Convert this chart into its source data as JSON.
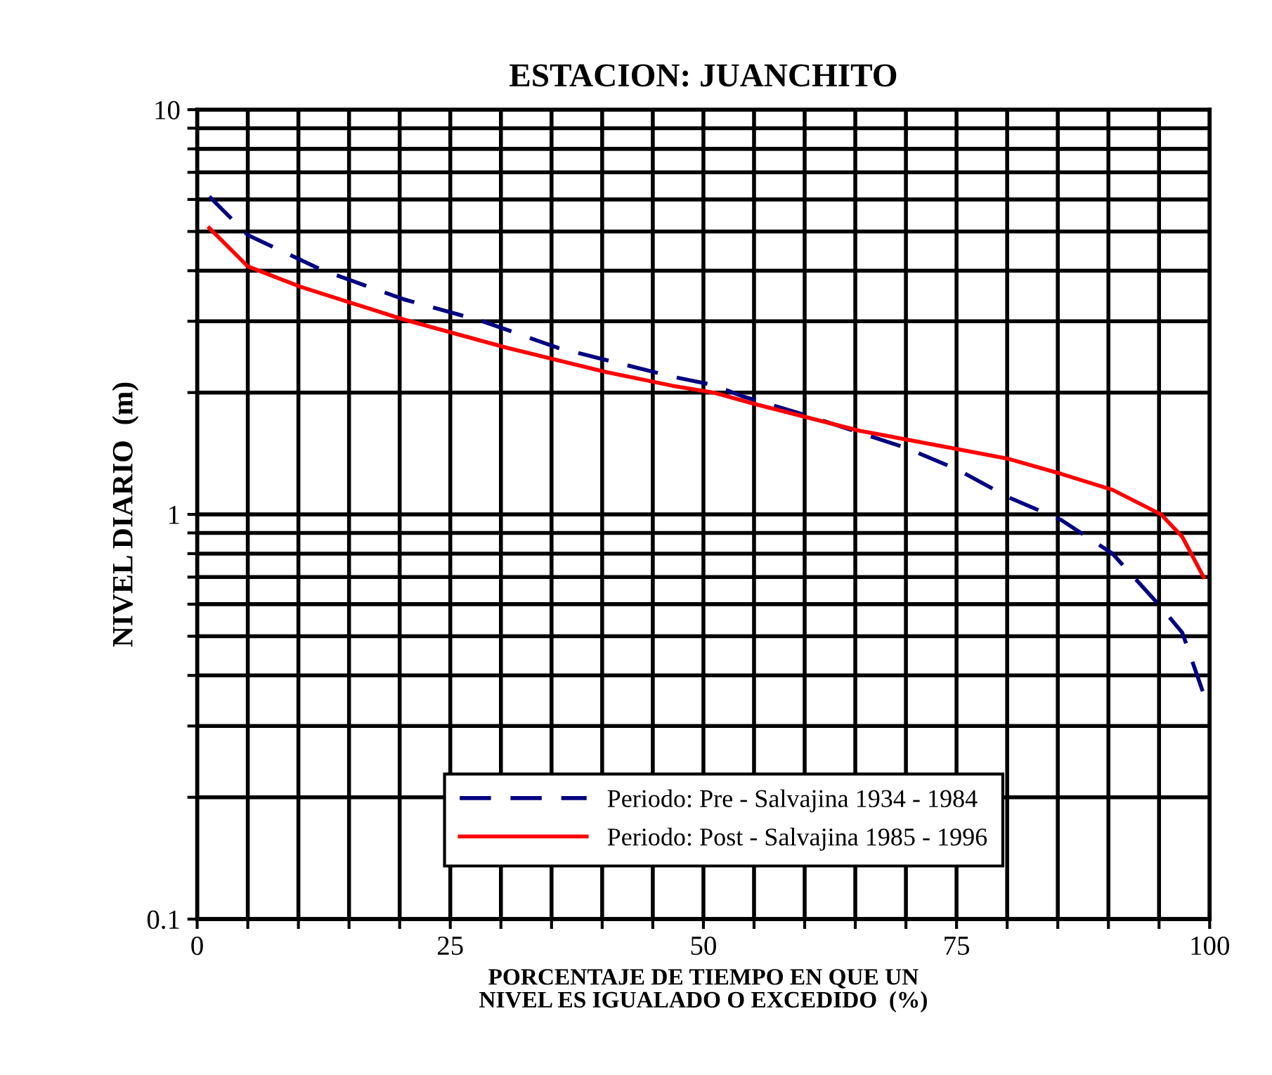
{
  "chart_data": {
    "type": "line",
    "title": "ESTACION: JUANCHITO",
    "xlabel": "PORCENTAJE DE TIEMPO EN QUE UN\nNIVEL ES IGUALADO O EXCEDIDO  (%)",
    "ylabel": "NIVEL DIARIO  (m)",
    "series": [
      {
        "name": "Periodo: Pre - Salvajina 1934 - 1984",
        "color": "#000080",
        "line_style": "dashed",
        "x": [
          1.2,
          5,
          12.5,
          20.4,
          28.2,
          35.6,
          46.9,
          50.9,
          53.8,
          60.7,
          70,
          75.1,
          80.2,
          85.3,
          90.4,
          95.2,
          97.3,
          99.4
        ],
        "values": [
          6.1,
          4.9,
          4.0,
          3.4,
          3.0,
          2.58,
          2.19,
          2.09,
          1.96,
          1.74,
          1.46,
          1.29,
          1.1,
          0.97,
          0.8,
          0.59,
          0.51,
          0.36
        ]
      },
      {
        "name": "Periodo: Post - Salvajina 1985 - 1996",
        "color": "#ff0000",
        "line_style": "solid",
        "x": [
          1.2,
          5,
          10.2,
          20.4,
          30.6,
          40.3,
          46.9,
          51,
          55.2,
          65.4,
          75.1,
          80.2,
          85.3,
          90.4,
          95.2,
          97.3,
          99.4
        ],
        "values": [
          5.1,
          4.1,
          3.65,
          3.03,
          2.58,
          2.25,
          2.08,
          2.0,
          1.87,
          1.61,
          1.45,
          1.37,
          1.26,
          1.15,
          1.0,
          0.88,
          0.7
        ]
      }
    ],
    "log": "y",
    "xlim": [
      0,
      100
    ],
    "ylim": [
      0.1,
      10
    ],
    "xticks": [
      0,
      {
        "value": 5,
        "label": null
      },
      {
        "value": 10,
        "label": null
      },
      {
        "value": 15,
        "label": null
      },
      {
        "value": 20,
        "label": null
      },
      25,
      {
        "value": 30,
        "label": null
      },
      {
        "value": 35,
        "label": null
      },
      {
        "value": 40,
        "label": null
      },
      {
        "value": 45,
        "label": null
      },
      50,
      {
        "value": 55,
        "label": null
      },
      {
        "value": 60,
        "label": null
      },
      {
        "value": 65,
        "label": null
      },
      {
        "value": 70,
        "label": null
      },
      75,
      {
        "value": 80,
        "label": null
      },
      {
        "value": 85,
        "label": null
      },
      {
        "value": 90,
        "label": null
      },
      {
        "value": 95,
        "label": null
      },
      100
    ],
    "yticks": [
      0.1,
      {
        "value": 0.2,
        "label": null
      },
      {
        "value": 0.3,
        "label": null
      },
      {
        "value": 0.4,
        "label": null
      },
      {
        "value": 0.5,
        "label": null
      },
      {
        "value": 0.6,
        "label": null
      },
      {
        "value": 0.7,
        "label": null
      },
      {
        "value": 0.8,
        "label": null
      },
      {
        "value": 0.9,
        "label": null
      },
      1,
      {
        "value": 2,
        "label": null
      },
      {
        "value": 3,
        "label": null
      },
      {
        "value": 4,
        "label": null
      },
      {
        "value": 5,
        "label": null
      },
      {
        "value": 6,
        "label": null
      },
      {
        "value": 7,
        "label": null
      },
      {
        "value": 8,
        "label": null
      },
      {
        "value": 9,
        "label": null
      },
      10
    ],
    "grid": true,
    "legend": "bottom"
  }
}
